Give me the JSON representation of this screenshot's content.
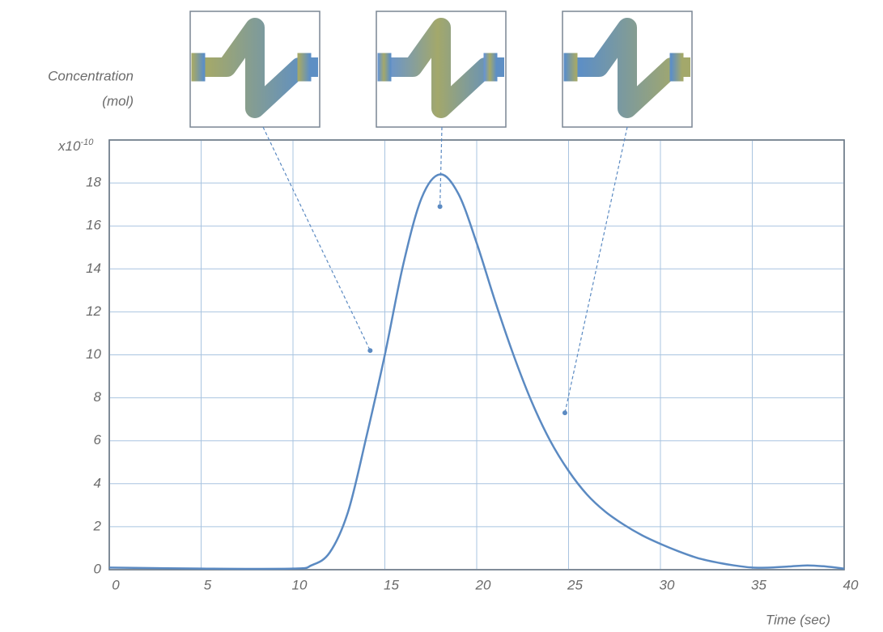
{
  "chart_data": {
    "type": "line",
    "y_label": [
      "Concentration",
      "(mol)"
    ],
    "y_multiplier": "x10",
    "y_multiplier_exponent": "-10",
    "x_label": "Time (sec)",
    "x": [
      0,
      5,
      10,
      11,
      12,
      13,
      14,
      15,
      16,
      17,
      18,
      19,
      20,
      21,
      22,
      23,
      24,
      25,
      26,
      27,
      28,
      29,
      30,
      31,
      32,
      33,
      34,
      35,
      36,
      37,
      38,
      39,
      40
    ],
    "values": [
      0.1,
      0.05,
      0.05,
      0.2,
      0.8,
      2.7,
      6.2,
      10,
      14.2,
      17.3,
      18.4,
      17.5,
      15.2,
      12.5,
      10,
      7.8,
      6,
      4.6,
      3.5,
      2.7,
      2.1,
      1.6,
      1.2,
      0.85,
      0.55,
      0.35,
      0.2,
      0.1,
      0.1,
      0.15,
      0.2,
      0.15,
      0.05
    ],
    "color": "#5b8ac2",
    "xlim": [
      0,
      40
    ],
    "xticks": [
      0,
      5,
      10,
      15,
      20,
      25,
      30,
      35,
      40
    ],
    "ylim": [
      0,
      20
    ],
    "yticks": [
      0,
      2,
      4,
      6,
      8,
      10,
      12,
      14,
      16,
      18
    ],
    "grid": true,
    "annotations": [
      {
        "x": 14.2,
        "y": 10.2
      },
      {
        "x": 18,
        "y": 16.9
      },
      {
        "x": 24.8,
        "y": 7.3
      }
    ]
  }
}
